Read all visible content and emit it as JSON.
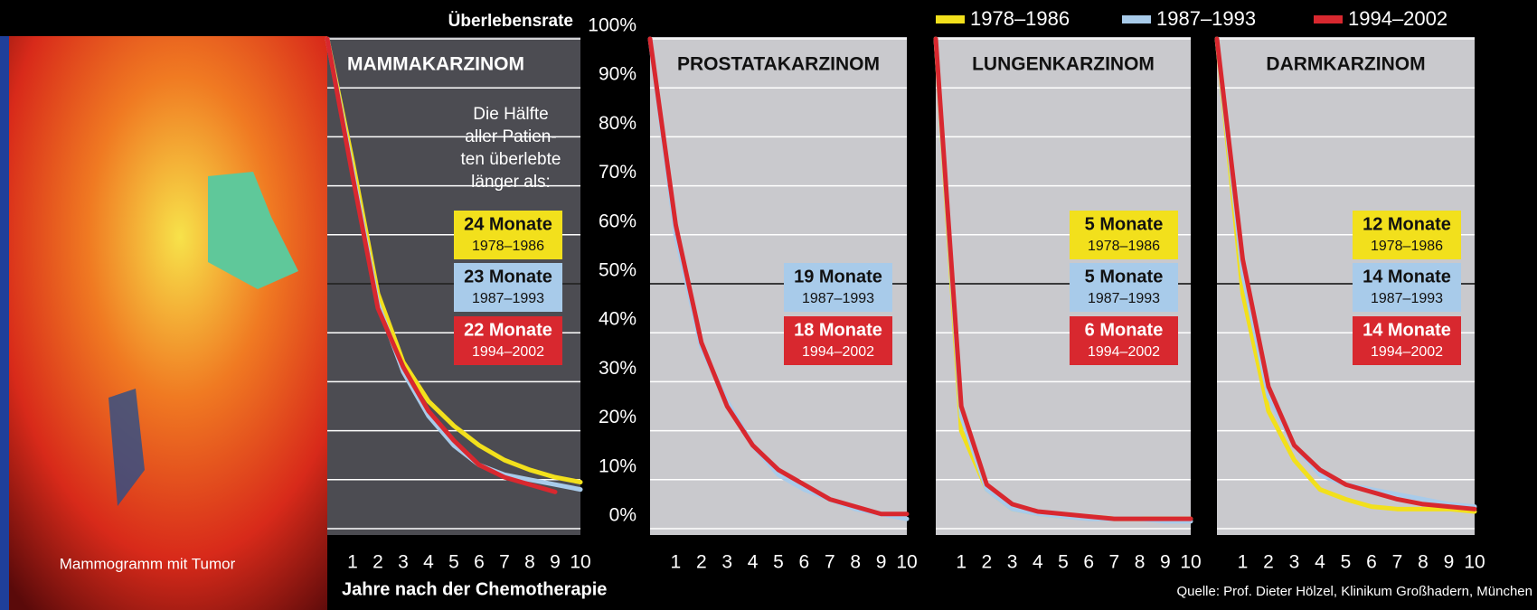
{
  "image_caption": "Mammogramm mit Tumor",
  "source": "Quelle: Prof. Dieter Hölzel, Klinikum Großhadern, München",
  "chart_data": [
    {
      "type": "line",
      "title": "MAMMAKARZINOM",
      "ylabel": "Überlebensrate",
      "xlabel": "Jahre nach der Chemotherapie",
      "annotation": [
        "Die Hälfte",
        "aller Patien-",
        "ten überlebte",
        "länger als:"
      ],
      "background": "#4c4c52",
      "reference_line": 50,
      "x": [
        0,
        1,
        2,
        3,
        4,
        5,
        6,
        7,
        8,
        9,
        10
      ],
      "xlim": [
        0,
        10
      ],
      "xticks": [
        1,
        2,
        3,
        4,
        5,
        6,
        7,
        8,
        9,
        10
      ],
      "ylim": [
        0,
        100
      ],
      "yticks": [
        {
          "value": 0,
          "label": "0%"
        },
        {
          "value": 10,
          "label": "10%"
        },
        {
          "value": 20,
          "label": "20%"
        },
        {
          "value": 30,
          "label": "30%"
        },
        {
          "value": 40,
          "label": "40%"
        },
        {
          "value": 50,
          "label": "50%"
        },
        {
          "value": 60,
          "label": "60%"
        },
        {
          "value": 70,
          "label": "70%"
        },
        {
          "value": 80,
          "label": "80%"
        },
        {
          "value": 90,
          "label": "90%"
        },
        {
          "value": 100,
          "label": "100%"
        }
      ],
      "series": [
        {
          "name": "1978–1986",
          "color": "#f2e01c",
          "median_label": "24 Monate",
          "values": [
            100,
            75,
            48,
            34,
            26,
            21,
            17,
            14,
            12,
            10.5,
            9.5
          ]
        },
        {
          "name": "1987–1993",
          "color": "#a8cbea",
          "median_label": "23 Monate",
          "values": [
            100,
            73,
            46,
            32,
            23,
            17,
            13,
            11,
            10,
            9,
            8
          ]
        },
        {
          "name": "1994–2002",
          "color": "#d8282f",
          "median_label": "22 Monate",
          "values": [
            100,
            72,
            45,
            33,
            24,
            18,
            13,
            10.5,
            9,
            7.5,
            null
          ]
        }
      ]
    },
    {
      "type": "line",
      "title": "PROSTATAKARZINOM",
      "background": "#c9c9cd",
      "reference_line": 50,
      "x": [
        0,
        1,
        2,
        3,
        4,
        5,
        6,
        7,
        8,
        9,
        10
      ],
      "xlim": [
        0,
        10
      ],
      "xticks": [
        1,
        2,
        3,
        4,
        5,
        6,
        7,
        8,
        9,
        10
      ],
      "ylim": [
        0,
        100
      ],
      "yticks": [
        0,
        10,
        20,
        30,
        40,
        50,
        60,
        70,
        80,
        90,
        100
      ],
      "series": [
        {
          "name": "1987–1993",
          "color": "#a8cbea",
          "median_label": "19 Monate",
          "values": [
            100,
            60,
            37,
            26,
            17,
            11,
            8,
            6,
            4,
            3,
            2
          ]
        },
        {
          "name": "1994–2002",
          "color": "#d8282f",
          "median_label": "18 Monate",
          "values": [
            100,
            62,
            38,
            25,
            17,
            12,
            9,
            6,
            4.5,
            3,
            3
          ]
        }
      ]
    },
    {
      "type": "line",
      "title": "LUNGENKARZINOM",
      "background": "#c9c9cd",
      "reference_line": 50,
      "x": [
        0,
        1,
        2,
        3,
        4,
        5,
        6,
        7,
        8,
        9,
        10
      ],
      "xlim": [
        0,
        10
      ],
      "xticks": [
        1,
        2,
        3,
        4,
        5,
        6,
        7,
        8,
        9,
        10
      ],
      "ylim": [
        0,
        100
      ],
      "yticks": [
        0,
        10,
        20,
        30,
        40,
        50,
        60,
        70,
        80,
        90,
        100
      ],
      "series": [
        {
          "name": "1978–1986",
          "color": "#f2e01c",
          "median_label": "5 Monate",
          "values": [
            100,
            20,
            8,
            4,
            3,
            2.5,
            2.5,
            2,
            2,
            2,
            2
          ]
        },
        {
          "name": "1987–1993",
          "color": "#a8cbea",
          "median_label": "5 Monate",
          "values": [
            100,
            23,
            8,
            4,
            3,
            2.5,
            2,
            2,
            2,
            1.5,
            1.5
          ]
        },
        {
          "name": "1994–2002",
          "color": "#d8282f",
          "median_label": "6 Monate",
          "values": [
            100,
            25,
            9,
            5,
            3.5,
            3,
            2.5,
            2,
            2,
            2,
            2
          ]
        }
      ]
    },
    {
      "type": "line",
      "title": "DARMKARZINOM",
      "background": "#c9c9cd",
      "reference_line": 50,
      "x": [
        0,
        1,
        2,
        3,
        4,
        5,
        6,
        7,
        8,
        9,
        10
      ],
      "xlim": [
        0,
        10
      ],
      "xticks": [
        1,
        2,
        3,
        4,
        5,
        6,
        7,
        8,
        9,
        10
      ],
      "ylim": [
        0,
        100
      ],
      "yticks": [
        0,
        10,
        20,
        30,
        40,
        50,
        60,
        70,
        80,
        90,
        100
      ],
      "series": [
        {
          "name": "1978–1986",
          "color": "#f2e01c",
          "median_label": "12 Monate",
          "values": [
            100,
            48,
            24,
            14,
            8,
            6,
            4.5,
            4,
            4,
            4,
            3.5
          ]
        },
        {
          "name": "1987–1993",
          "color": "#a8cbea",
          "median_label": "14 Monate",
          "values": [
            100,
            52,
            27,
            17,
            11,
            9,
            8,
            7,
            6,
            5,
            4.5
          ]
        },
        {
          "name": "1994–2002",
          "color": "#d8282f",
          "median_label": "14 Monate",
          "values": [
            100,
            55,
            29,
            17,
            12,
            9,
            7.5,
            6,
            5,
            4.5,
            4
          ]
        }
      ]
    }
  ]
}
